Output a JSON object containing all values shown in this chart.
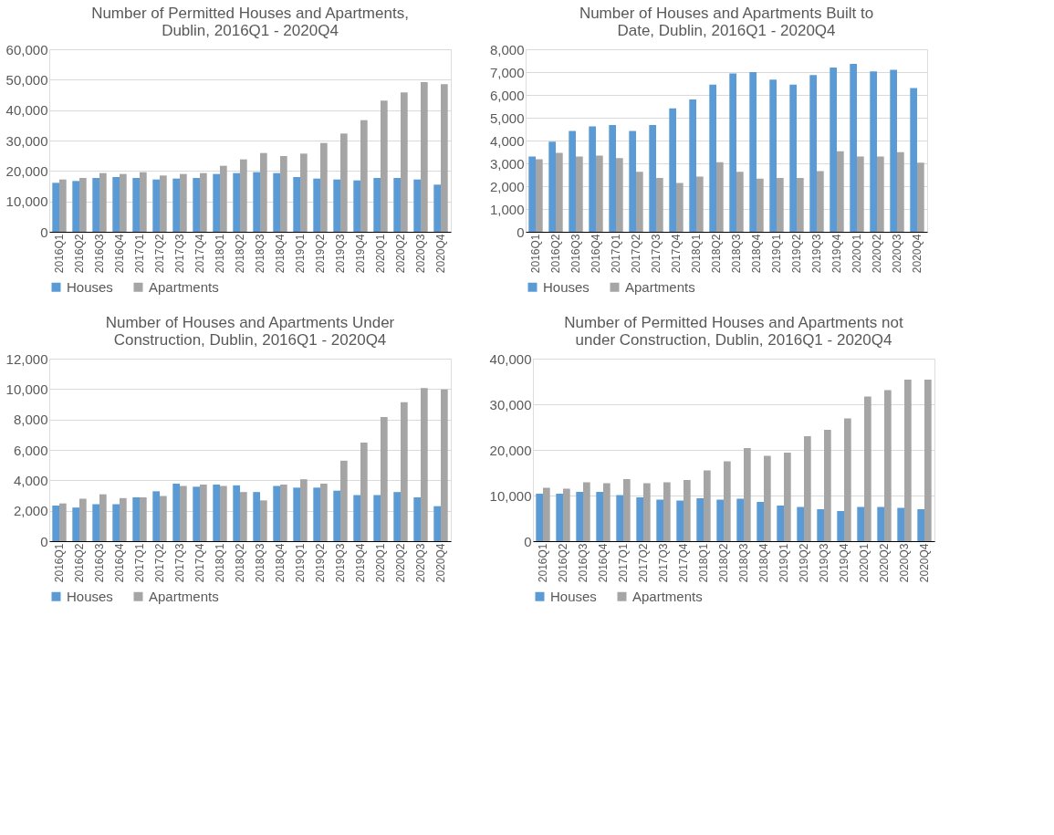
{
  "chart_data": [
    {
      "type": "bar",
      "title": "Number of Permitted Houses and Apartments, Dublin, 2016Q1 - 2020Q4",
      "categories": [
        "2016Q1",
        "2016Q2",
        "2016Q3",
        "2016Q4",
        "2017Q1",
        "2017Q2",
        "2017Q3",
        "2017Q4",
        "2018Q1",
        "2018Q2",
        "2018Q3",
        "2018Q4",
        "2019Q1",
        "2019Q2",
        "2019Q3",
        "2019Q4",
        "2020Q1",
        "2020Q2",
        "2020Q3",
        "2020Q4"
      ],
      "series": [
        {
          "name": "Houses",
          "color": "#5b9bd5",
          "values": [
            16100,
            16700,
            17700,
            18000,
            17700,
            17200,
            17500,
            17700,
            19000,
            19300,
            19600,
            19300,
            18000,
            17500,
            17200,
            16900,
            17700,
            17700,
            17200,
            15500
          ]
        },
        {
          "name": "Apartments",
          "color": "#a5a5a5",
          "values": [
            17200,
            17700,
            19300,
            19000,
            19600,
            18500,
            19000,
            19300,
            21700,
            23800,
            25900,
            24900,
            25700,
            29200,
            32300,
            36700,
            43100,
            45800,
            49200,
            48500
          ]
        }
      ],
      "ylim": [
        0,
        60000
      ],
      "yticks": [
        0,
        {
          "value": 10000,
          "label": "10,000"
        },
        {
          "value": 20000,
          "label": "20,000"
        },
        {
          "value": 30000,
          "label": "30,000"
        },
        {
          "value": 40000,
          "label": "40,000"
        },
        {
          "value": 50000,
          "label": "50,000"
        },
        {
          "value": 60000,
          "label": "60,000"
        }
      ],
      "grid": "y",
      "legend": "bottom"
    },
    {
      "type": "bar",
      "title": "Number of Houses and Apartments Built to Date, Dublin, 2016Q1 - 2020Q4",
      "categories": [
        "2016Q1",
        "2016Q2",
        "2016Q3",
        "2016Q4",
        "2017Q1",
        "2017Q2",
        "2017Q3",
        "2017Q4",
        "2018Q1",
        "2018Q2",
        "2018Q3",
        "2018Q4",
        "2019Q1",
        "2019Q2",
        "2019Q3",
        "2019Q4",
        "2020Q1",
        "2020Q2",
        "2020Q3",
        "2020Q4"
      ],
      "series": [
        {
          "name": "Houses",
          "color": "#5b9bd5",
          "values": [
            3300,
            3950,
            4420,
            4620,
            4680,
            4420,
            4680,
            5410,
            5800,
            6450,
            6940,
            7000,
            6670,
            6450,
            6870,
            7200,
            7360,
            7030,
            7100,
            6300
          ]
        },
        {
          "name": "Apartments",
          "color": "#a5a5a5",
          "values": [
            3180,
            3460,
            3300,
            3340,
            3230,
            2630,
            2360,
            2140,
            2420,
            3050,
            2630,
            2330,
            2360,
            2360,
            2660,
            3530,
            3300,
            3300,
            3490,
            3030
          ]
        }
      ],
      "ylim": [
        0,
        8000
      ],
      "yticks": [
        0,
        {
          "value": 1000,
          "label": "1,000"
        },
        {
          "value": 2000,
          "label": "2,000"
        },
        {
          "value": 3000,
          "label": "3,000"
        },
        {
          "value": 4000,
          "label": "4,000"
        },
        {
          "value": 5000,
          "label": "5,000"
        },
        {
          "value": 6000,
          "label": "6,000"
        },
        {
          "value": 7000,
          "label": "7,000"
        },
        {
          "value": 8000,
          "label": "8,000"
        }
      ],
      "grid": "y",
      "legend": "bottom"
    },
    {
      "type": "bar",
      "title": "Number of Houses and Apartments Under Construction, Dublin, 2016Q1 - 2020Q4",
      "categories": [
        "2016Q1",
        "2016Q2",
        "2016Q3",
        "2016Q4",
        "2017Q1",
        "2017Q2",
        "2017Q3",
        "2017Q4",
        "2018Q1",
        "2018Q2",
        "2018Q3",
        "2018Q4",
        "2019Q1",
        "2019Q2",
        "2019Q3",
        "2019Q4",
        "2020Q1",
        "2020Q2",
        "2020Q3",
        "2020Q4"
      ],
      "series": [
        {
          "name": "Houses",
          "color": "#5b9bd5",
          "values": [
            2340,
            2210,
            2430,
            2430,
            2880,
            3280,
            3780,
            3580,
            3720,
            3670,
            3230,
            3630,
            3520,
            3520,
            3320,
            3030,
            3030,
            3230,
            2880,
            2300
          ]
        },
        {
          "name": "Apartments",
          "color": "#a5a5a5",
          "values": [
            2480,
            2790,
            3080,
            2830,
            2880,
            2970,
            3630,
            3720,
            3630,
            3230,
            2680,
            3720,
            4070,
            3780,
            5290,
            6480,
            8160,
            9140,
            10070,
            9980
          ]
        }
      ],
      "ylim": [
        0,
        12000
      ],
      "yticks": [
        0,
        {
          "value": 2000,
          "label": "2,000"
        },
        {
          "value": 4000,
          "label": "4,000"
        },
        {
          "value": 6000,
          "label": "6,000"
        },
        {
          "value": 8000,
          "label": "8,000"
        },
        {
          "value": 10000,
          "label": "10,000"
        },
        {
          "value": 12000,
          "label": "12,000"
        }
      ],
      "grid": "y",
      "legend": "bottom"
    },
    {
      "type": "bar",
      "title": "Number of Permitted Houses and Apartments not under Construction, Dublin, 2016Q1 - 2020Q4",
      "categories": [
        "2016Q1",
        "2016Q2",
        "2016Q3",
        "2016Q4",
        "2017Q1",
        "2017Q2",
        "2017Q3",
        "2017Q4",
        "2018Q1",
        "2018Q2",
        "2018Q3",
        "2018Q4",
        "2019Q1",
        "2019Q2",
        "2019Q3",
        "2019Q4",
        "2020Q1",
        "2020Q2",
        "2020Q3",
        "2020Q4"
      ],
      "series": [
        {
          "name": "Houses",
          "color": "#5b9bd5",
          "values": [
            10400,
            10400,
            10800,
            10800,
            10100,
            9600,
            9100,
            8900,
            9400,
            9100,
            9300,
            8600,
            7800,
            7500,
            7000,
            6600,
            7500,
            7500,
            7300,
            7000
          ]
        },
        {
          "name": "Apartments",
          "color": "#a5a5a5",
          "values": [
            11700,
            11500,
            12900,
            12700,
            13600,
            12700,
            12900,
            13400,
            15500,
            17500,
            20400,
            18700,
            19400,
            23000,
            24400,
            26900,
            31700,
            33100,
            35400,
            35400
          ]
        }
      ],
      "ylim": [
        0,
        40000
      ],
      "yticks": [
        0,
        {
          "value": 10000,
          "label": "10,000"
        },
        {
          "value": 20000,
          "label": "20,000"
        },
        {
          "value": 30000,
          "label": "30,000"
        },
        {
          "value": 40000,
          "label": "40,000"
        }
      ],
      "grid": "y",
      "legend": "bottom"
    }
  ]
}
